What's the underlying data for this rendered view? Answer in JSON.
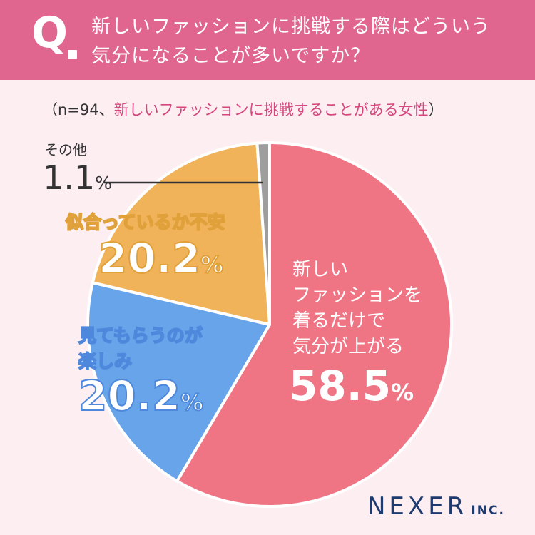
{
  "header": {
    "q_mark": "Q",
    "question_line1": "新しいファッションに挑戦する際はどういう",
    "question_line2": "気分になることが多いですか？"
  },
  "sample": {
    "prefix": "（n=94、",
    "group": "新しいファッションに挑戦することがある女性",
    "suffix": "）"
  },
  "chart_data": {
    "type": "pie",
    "slices": [
      {
        "name": "新しいファッションを着るだけで気分が上がる",
        "label_lines": [
          "新しい",
          "ファッションを",
          "着るだけで",
          "気分が上がる"
        ],
        "value": 58.5,
        "value_text": "58.5",
        "color": "#ef7585"
      },
      {
        "name": "見てもらうのが楽しみ",
        "label_lines": [
          "見てもらうのが",
          "楽しみ"
        ],
        "value": 20.2,
        "value_text": "20.2",
        "color": "#67a4ea"
      },
      {
        "name": "似合っているか不安",
        "label_lines": [
          "似合っているか不安"
        ],
        "value": 20.2,
        "value_text": "20.2",
        "color": "#f0b35a"
      },
      {
        "name": "その他",
        "label_lines": [
          "その他"
        ],
        "value": 1.1,
        "value_text": "1.1",
        "color": "#9e9e9e"
      }
    ],
    "unit": "%"
  },
  "logo": {
    "main": "NEXER",
    "sub": "INC."
  }
}
